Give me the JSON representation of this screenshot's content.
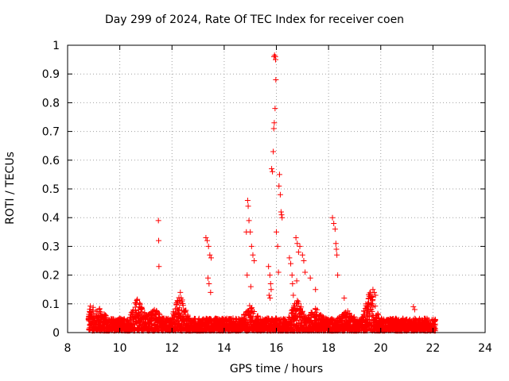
{
  "chart_data": {
    "type": "scatter",
    "title": "Day 299 of 2024, Rate Of TEC Index for receiver coen",
    "xlabel": "GPS time / hours",
    "ylabel": "ROTI / TECUs",
    "xlim": [
      8,
      24
    ],
    "ylim": [
      0,
      1
    ],
    "xticks": [
      "8",
      "10",
      "12",
      "14",
      "16",
      "18",
      "20",
      "22",
      "24"
    ],
    "yticks": [
      "0",
      "0.1",
      "0.2",
      "0.3",
      "0.4",
      "0.5",
      "0.6",
      "0.7",
      "0.8",
      "0.9",
      "1"
    ],
    "grid": true,
    "marker": "plus",
    "color": "#ff0000",
    "series": [
      {
        "name": "ROTI",
        "x": [
          11.48,
          11.49,
          11.5,
          12.32,
          12.35,
          13.3,
          13.35,
          13.4,
          13.45,
          13.5,
          13.38,
          13.42,
          13.48,
          14.9,
          14.92,
          14.95,
          15.0,
          15.05,
          15.1,
          15.15,
          14.85,
          14.88,
          15.02,
          15.7,
          15.75,
          15.78,
          15.8,
          15.72,
          15.76,
          15.82,
          15.85,
          15.88,
          15.9,
          15.92,
          15.95,
          15.98,
          15.91,
          15.93,
          15.96,
          15.97,
          16.0,
          16.05,
          16.1,
          16.12,
          16.15,
          16.18,
          16.2,
          16.08,
          16.22,
          16.5,
          16.55,
          16.6,
          16.62,
          16.65,
          16.7,
          16.75,
          16.8,
          16.85,
          16.78,
          16.9,
          17.0,
          17.05,
          17.1,
          17.3,
          17.5,
          18.15,
          18.2,
          18.25,
          18.28,
          18.3,
          18.32,
          18.35,
          18.6,
          19.5,
          19.6,
          19.7,
          19.75,
          19.8,
          19.65,
          21.25,
          21.3
        ],
        "y": [
          0.39,
          0.32,
          0.23,
          0.14,
          0.12,
          0.33,
          0.32,
          0.3,
          0.27,
          0.26,
          0.19,
          0.17,
          0.14,
          0.46,
          0.44,
          0.39,
          0.35,
          0.3,
          0.27,
          0.25,
          0.35,
          0.2,
          0.16,
          0.23,
          0.2,
          0.17,
          0.15,
          0.13,
          0.12,
          0.57,
          0.56,
          0.63,
          0.71,
          0.73,
          0.78,
          0.88,
          0.96,
          0.965,
          0.96,
          0.95,
          0.35,
          0.3,
          0.51,
          0.55,
          0.48,
          0.42,
          0.41,
          0.21,
          0.4,
          0.26,
          0.24,
          0.2,
          0.17,
          0.13,
          0.1,
          0.33,
          0.31,
          0.28,
          0.18,
          0.3,
          0.27,
          0.25,
          0.21,
          0.19,
          0.15,
          0.4,
          0.38,
          0.36,
          0.31,
          0.29,
          0.27,
          0.2,
          0.12,
          0.1,
          0.12,
          0.15,
          0.14,
          0.13,
          0.1,
          0.09,
          0.08
        ]
      }
    ],
    "baseline_band": {
      "description": "dense points between 8.8 and 22.1 hours",
      "x_range": [
        8.8,
        22.1
      ],
      "typical_max": 0.05,
      "bursts": [
        {
          "x": 8.9,
          "max": 0.1
        },
        {
          "x": 9.2,
          "max": 0.09
        },
        {
          "x": 10.7,
          "max": 0.13
        },
        {
          "x": 11.3,
          "max": 0.09
        },
        {
          "x": 12.3,
          "max": 0.14
        },
        {
          "x": 15.0,
          "max": 0.1
        },
        {
          "x": 16.8,
          "max": 0.12
        },
        {
          "x": 17.5,
          "max": 0.09
        },
        {
          "x": 18.7,
          "max": 0.08
        },
        {
          "x": 19.6,
          "max": 0.15
        }
      ]
    }
  }
}
